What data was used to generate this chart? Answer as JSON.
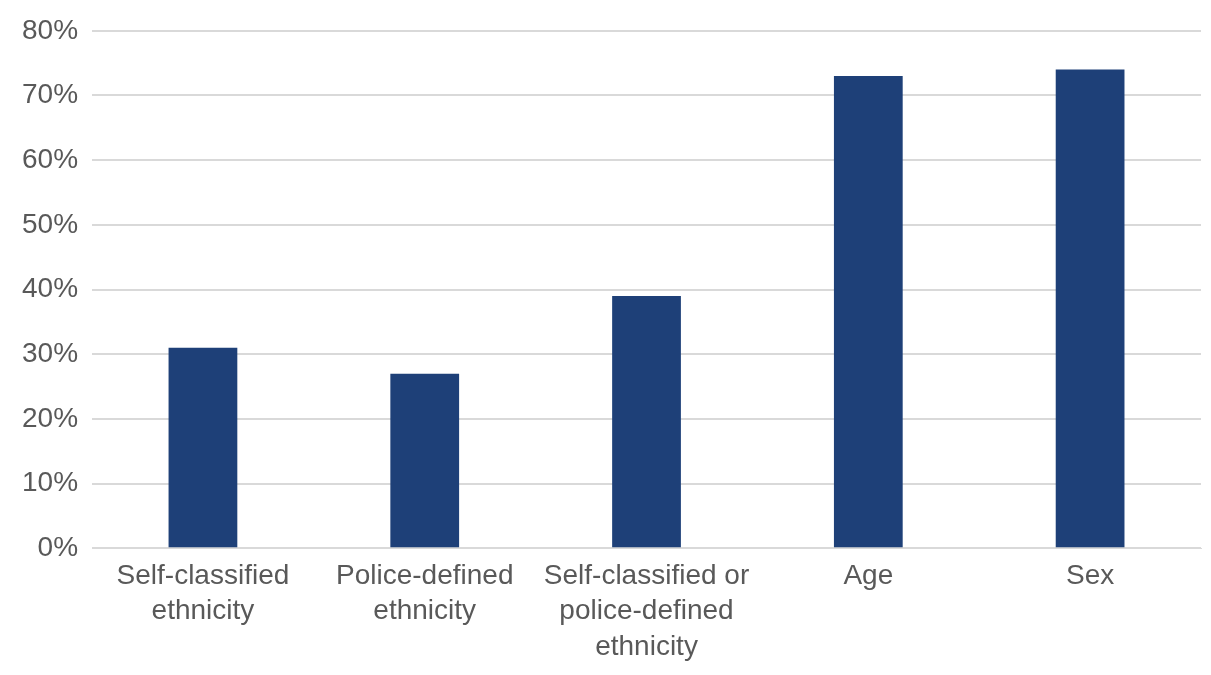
{
  "chart_data": {
    "type": "bar",
    "categories": [
      "Self-classified ethnicity",
      "Police-defined ethnicity",
      "Self-classified or police-defined ethnicity",
      "Age",
      "Sex"
    ],
    "values": [
      31,
      27,
      39,
      73,
      74
    ],
    "color": "#1e4078",
    "ylim": [
      0,
      80
    ],
    "yticks": [
      {
        "value": 0,
        "label": "0%"
      },
      {
        "value": 10,
        "label": "10%"
      },
      {
        "value": 20,
        "label": "20%"
      },
      {
        "value": 30,
        "label": "30%"
      },
      {
        "value": 40,
        "label": "40%"
      },
      {
        "value": 50,
        "label": "50%"
      },
      {
        "value": 60,
        "label": "60%"
      },
      {
        "value": 70,
        "label": "70%"
      },
      {
        "value": 80,
        "label": "80%"
      }
    ],
    "grid": "y",
    "legend": false
  }
}
